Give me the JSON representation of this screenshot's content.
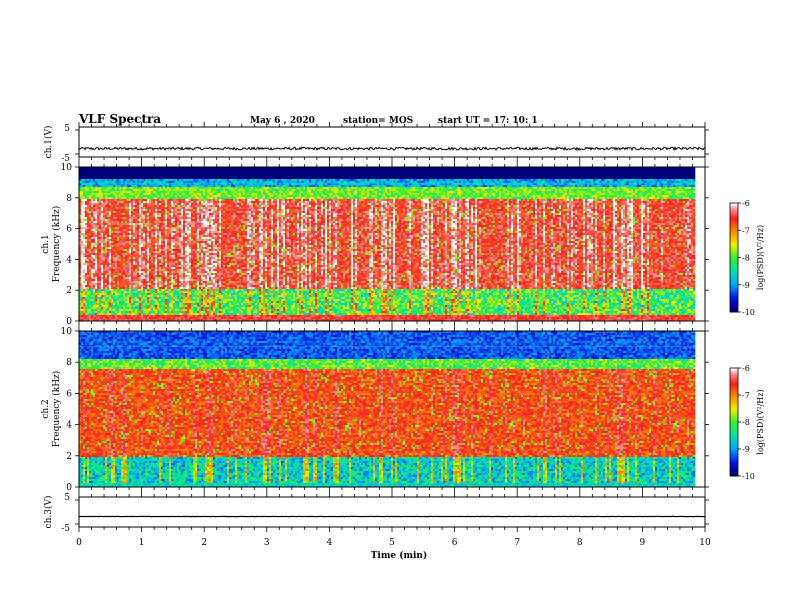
{
  "header": {
    "title": "VLF Spectra",
    "date": "May 6 , 2020",
    "station": "station= MOS",
    "start": "start UT = 17: 10: 1"
  },
  "chart_data": [
    {
      "type": "line",
      "name": "ch1-voltage",
      "ylabel": "ch.1(V)",
      "ylim": [
        -5,
        5
      ],
      "yticks": [
        5,
        -5
      ],
      "level": -2.2,
      "xlim": [
        0,
        10
      ]
    },
    {
      "type": "heatmap",
      "name": "ch1-spectrogram",
      "ylabel": "ch.1\nFrequency (kHz)",
      "ylim": [
        0,
        10
      ],
      "yticks": [
        0,
        2,
        4,
        6,
        8,
        10
      ],
      "xlim": [
        0,
        9.85
      ],
      "colorbar": {
        "label": "log(PSD)(V²/Hz)",
        "ticks": [
          -6,
          -7,
          -8,
          -9,
          -10
        ],
        "range": [
          -10,
          -6
        ]
      }
    },
    {
      "type": "heatmap",
      "name": "ch2-spectrogram",
      "ylabel": "ch.2\nFrequency (kHz)",
      "ylim": [
        0,
        10
      ],
      "yticks": [
        0,
        2,
        4,
        6,
        8,
        10
      ],
      "xlim": [
        0,
        9.85
      ],
      "colorbar": {
        "label": "log(PSD)(V²/Hz)",
        "ticks": [
          -6,
          -7,
          -8,
          -9,
          -10
        ],
        "range": [
          -10,
          -6
        ]
      }
    },
    {
      "type": "line",
      "name": "ch3-voltage",
      "ylabel": "ch.3(V)",
      "ylim": [
        -5,
        5
      ],
      "yticks": [
        5,
        -5
      ],
      "level": -1.5,
      "xlim": [
        0,
        10
      ]
    }
  ],
  "xaxis": {
    "label": "Time (min)",
    "range": [
      0,
      10
    ],
    "ticks": [
      "0",
      "1",
      "2",
      "3",
      "4",
      "5",
      "6",
      "7",
      "8",
      "9",
      "10"
    ]
  }
}
